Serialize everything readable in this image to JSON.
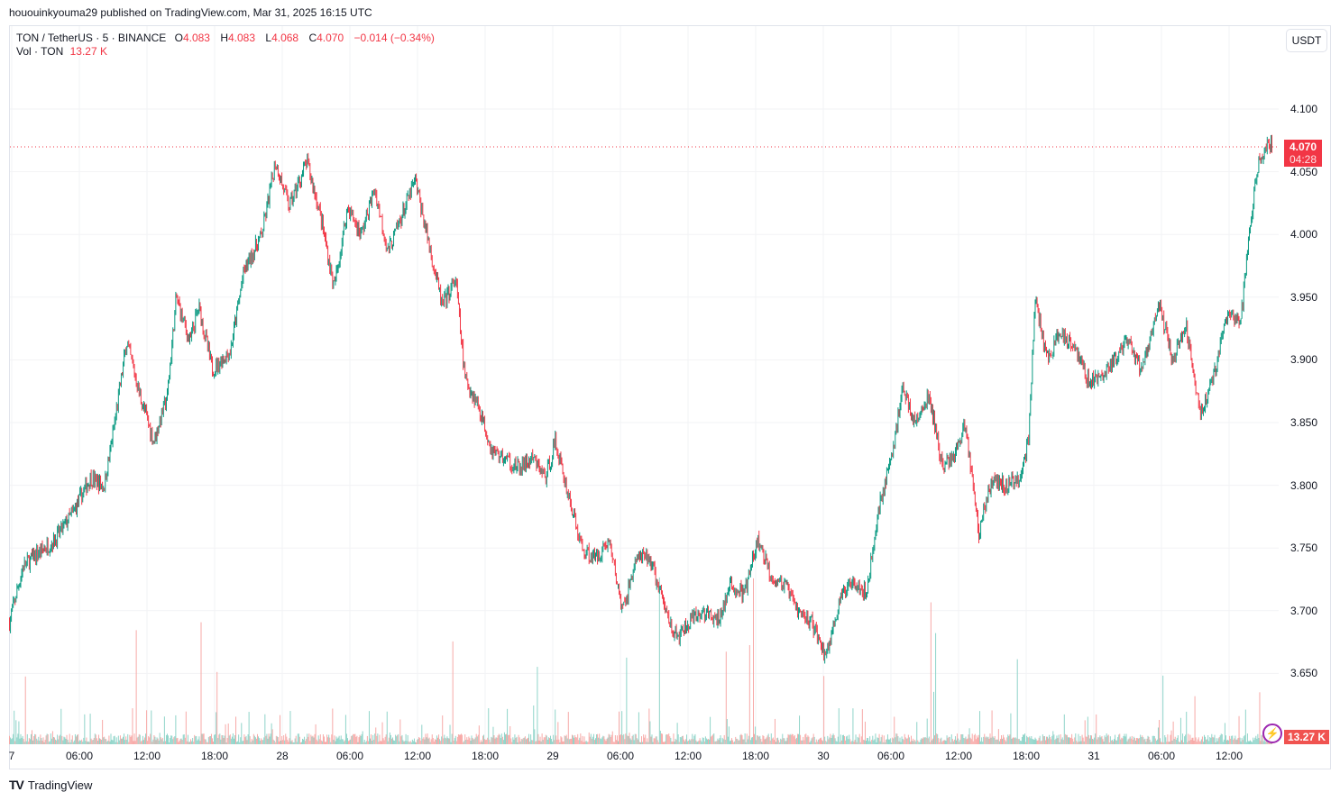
{
  "published": "hououinkyouma29 published on TradingView.com, Mar 31, 2025 16:15 UTC",
  "legend": {
    "symbol": "TON / TetherUS · 5 · BINANCE",
    "o_label": "O",
    "o": "4.083",
    "h_label": "H",
    "h": "4.083",
    "l_label": "L",
    "l": "4.068",
    "c_label": "C",
    "c": "4.070",
    "change": "−0.014 (−0.34%)",
    "vol_label": "Vol · TON",
    "vol": "13.27 K"
  },
  "currency_button": "USDT",
  "last_price": "4.070",
  "countdown": "04:28",
  "volume_badge": "13.27 K",
  "logo_text": "TradingView",
  "colors": {
    "up": "#089981",
    "down": "#f23645",
    "vol_up": "#8fd4c9",
    "vol_down": "#f7a9a7"
  },
  "chart_data": {
    "type": "candlestick",
    "title": "TON / TetherUS · 5 · BINANCE",
    "interval": "5m",
    "x_unit": "hours since Mar 27 00:00 UTC",
    "y_ticks": [
      "4.100",
      "4.050",
      "4.000",
      "3.950",
      "3.900",
      "3.850",
      "3.800",
      "3.750",
      "3.700",
      "3.650"
    ],
    "ylim": [
      3.625,
      4.12
    ],
    "x_ticks": [
      "7",
      "06:00",
      "12:00",
      "18:00",
      "28",
      "06:00",
      "12:00",
      "18:00",
      "29",
      "06:00",
      "12:00",
      "18:00",
      "30",
      "06:00",
      "12:00",
      "18:00",
      "31",
      "06:00",
      "12:00"
    ],
    "price_path": [
      [
        -0.2,
        3.691
      ],
      [
        1,
        3.735
      ],
      [
        2.2,
        3.745
      ],
      [
        3.8,
        3.756
      ],
      [
        5.4,
        3.778
      ],
      [
        7,
        3.806
      ],
      [
        8.2,
        3.799
      ],
      [
        9,
        3.842
      ],
      [
        10.2,
        3.914
      ],
      [
        11.4,
        3.871
      ],
      [
        12.6,
        3.835
      ],
      [
        13.8,
        3.871
      ],
      [
        14.6,
        3.95
      ],
      [
        15.8,
        3.914
      ],
      [
        16.6,
        3.943
      ],
      [
        17.8,
        3.892
      ],
      [
        19.4,
        3.907
      ],
      [
        20.6,
        3.971
      ],
      [
        22.2,
        4.0
      ],
      [
        23.4,
        4.058
      ],
      [
        24.6,
        4.022
      ],
      [
        26.2,
        4.058
      ],
      [
        27.4,
        4.015
      ],
      [
        28.6,
        3.957
      ],
      [
        29.8,
        4.022
      ],
      [
        31,
        4.0
      ],
      [
        32.2,
        4.036
      ],
      [
        33.4,
        3.986
      ],
      [
        34.6,
        4.015
      ],
      [
        35.8,
        4.043
      ],
      [
        37,
        3.993
      ],
      [
        38.2,
        3.943
      ],
      [
        39.4,
        3.964
      ],
      [
        40.2,
        3.885
      ],
      [
        41.4,
        3.864
      ],
      [
        42.6,
        3.828
      ],
      [
        43.8,
        3.821
      ],
      [
        45,
        3.813
      ],
      [
        46.2,
        3.821
      ],
      [
        47.4,
        3.806
      ],
      [
        48.2,
        3.835
      ],
      [
        49.4,
        3.792
      ],
      [
        50.6,
        3.749
      ],
      [
        51.8,
        3.742
      ],
      [
        53,
        3.756
      ],
      [
        54.2,
        3.699
      ],
      [
        55.4,
        3.742
      ],
      [
        56.6,
        3.742
      ],
      [
        57.8,
        3.706
      ],
      [
        59,
        3.677
      ],
      [
        60.2,
        3.691
      ],
      [
        61.4,
        3.699
      ],
      [
        62.6,
        3.691
      ],
      [
        63.8,
        3.72
      ],
      [
        65,
        3.713
      ],
      [
        66.2,
        3.756
      ],
      [
        67.4,
        3.727
      ],
      [
        68.6,
        3.72
      ],
      [
        69.8,
        3.699
      ],
      [
        71,
        3.691
      ],
      [
        72.2,
        3.663
      ],
      [
        73.4,
        3.706
      ],
      [
        74.6,
        3.727
      ],
      [
        75.8,
        3.713
      ],
      [
        77,
        3.785
      ],
      [
        78.2,
        3.828
      ],
      [
        79,
        3.878
      ],
      [
        80.2,
        3.849
      ],
      [
        81.4,
        3.871
      ],
      [
        82.6,
        3.813
      ],
      [
        83.8,
        3.828
      ],
      [
        84.6,
        3.849
      ],
      [
        85.8,
        3.763
      ],
      [
        87,
        3.806
      ],
      [
        88.2,
        3.799
      ],
      [
        89.4,
        3.806
      ],
      [
        90.2,
        3.835
      ],
      [
        90.8,
        3.95
      ],
      [
        91.8,
        3.9
      ],
      [
        93,
        3.921
      ],
      [
        94.2,
        3.914
      ],
      [
        95.4,
        3.885
      ],
      [
        96.6,
        3.885
      ],
      [
        97.8,
        3.9
      ],
      [
        99,
        3.914
      ],
      [
        100.2,
        3.892
      ],
      [
        101.8,
        3.943
      ],
      [
        103,
        3.9
      ],
      [
        104.2,
        3.928
      ],
      [
        105.4,
        3.857
      ],
      [
        106.6,
        3.885
      ],
      [
        107.8,
        3.936
      ],
      [
        109,
        3.928
      ],
      [
        109.8,
        4.0
      ],
      [
        110.6,
        4.058
      ],
      [
        111.4,
        4.072
      ],
      [
        111.8,
        4.07
      ]
    ]
  }
}
